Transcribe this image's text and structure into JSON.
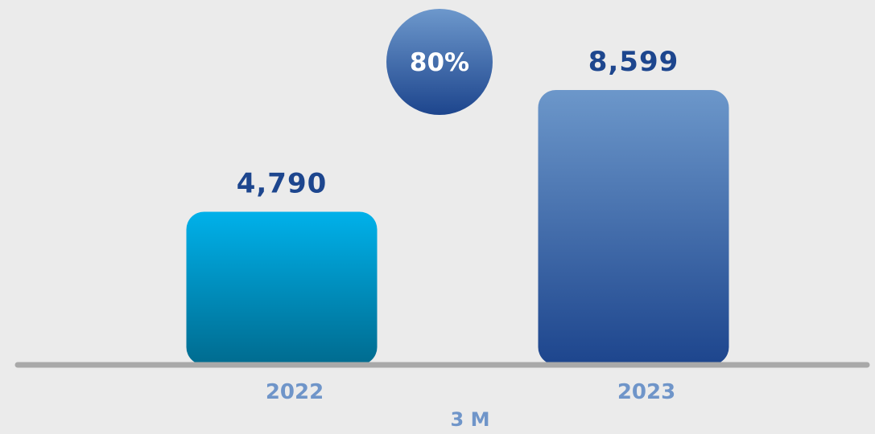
{
  "chart_data": {
    "type": "bar",
    "categories": [
      "2022",
      "2023"
    ],
    "values": [
      4790,
      8599
    ],
    "value_labels": [
      "4,790",
      "8,599"
    ],
    "group_label": "3 M",
    "growth_badge": "80%",
    "ylim": [
      0,
      9000
    ],
    "grid": false,
    "legend": "none"
  },
  "colors": {
    "background": "#ebebeb",
    "baseline": "#a9a9a9",
    "value_text": "#1d468e",
    "category_text": "#6f95c9",
    "badge_text": "#ffffff",
    "bar_2022_top": "#00b1ea",
    "bar_2022_bottom": "#006b8f",
    "bar_2023_top": "#6c97ca",
    "bar_2023_bottom": "#1d458d",
    "badge_top": "#6d98cc",
    "badge_bottom": "#1d458d"
  }
}
